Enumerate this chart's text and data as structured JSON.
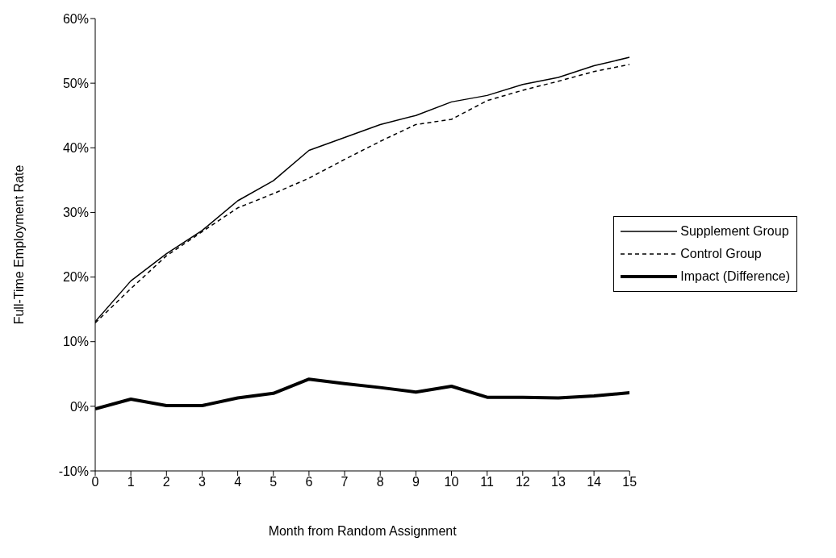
{
  "chart_data": {
    "type": "line",
    "xlabel": "Month from Random Assignment",
    "ylabel": "Full-Time Employment Rate",
    "x": [
      0,
      1,
      2,
      3,
      4,
      5,
      6,
      7,
      8,
      9,
      10,
      11,
      12,
      13,
      14,
      15
    ],
    "series": [
      {
        "name": "Supplement Group",
        "color": "#000000",
        "line_style": "solid",
        "values": [
          13.1,
          19.4,
          23.6,
          27.2,
          31.8,
          34.9,
          39.6,
          41.6,
          43.6,
          45.0,
          47.1,
          48.1,
          49.8,
          50.9,
          52.7,
          54.0
        ]
      },
      {
        "name": "Control Group",
        "color": "#000000",
        "line_style": "dashed",
        "values": [
          12.9,
          18.2,
          23.3,
          27.0,
          30.7,
          32.9,
          35.3,
          38.2,
          41.0,
          43.6,
          44.4,
          47.3,
          48.9,
          50.3,
          51.8,
          52.9
        ]
      },
      {
        "name": "Impact (Difference)",
        "color": "#000000",
        "line_style": "solid",
        "values": [
          -0.4,
          1.1,
          0.1,
          0.1,
          1.3,
          2.0,
          4.2,
          3.5,
          2.9,
          2.2,
          3.1,
          1.4,
          1.4,
          1.3,
          1.6,
          2.1
        ]
      }
    ],
    "xlim": [
      0,
      15
    ],
    "xticks": [
      0,
      1,
      2,
      3,
      4,
      5,
      6,
      7,
      8,
      9,
      10,
      11,
      12,
      13,
      14,
      15
    ],
    "ylim": [
      -10,
      60
    ],
    "yticks": [
      {
        "value": -10,
        "label": "-10%"
      },
      {
        "value": 0,
        "label": "0%"
      },
      {
        "value": 10,
        "label": "10%"
      },
      {
        "value": 20,
        "label": "20%"
      },
      {
        "value": 30,
        "label": "30%"
      },
      {
        "value": 40,
        "label": "40%"
      },
      {
        "value": 50,
        "label": "50%"
      },
      {
        "value": 60,
        "label": "60%"
      }
    ],
    "grid": false,
    "legend": "right",
    "marker": "none"
  }
}
